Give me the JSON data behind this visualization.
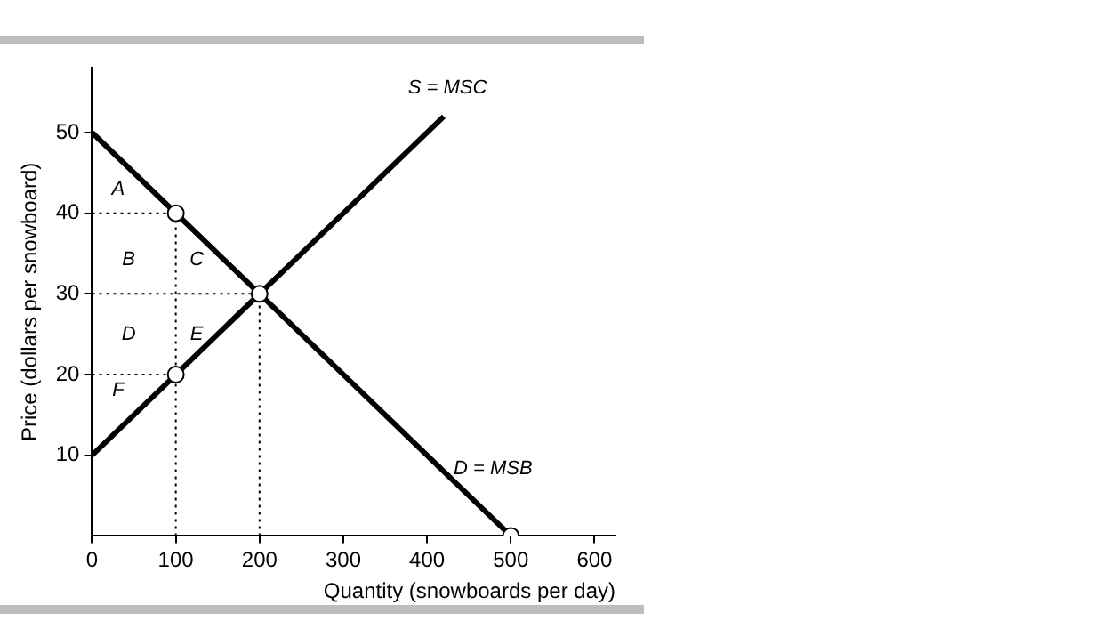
{
  "chart_data": {
    "type": "line",
    "xlabel": "Quantity (snowboards per day)",
    "ylabel": "Price (dollars per snowboard)",
    "xlim": [
      0,
      625
    ],
    "ylim": [
      0,
      58
    ],
    "xticks": [
      0,
      100,
      200,
      300,
      400,
      500,
      600
    ],
    "yticks": [
      10,
      20,
      30,
      40,
      50
    ],
    "grid": false,
    "legend": false,
    "marker": "none",
    "series": [
      {
        "name": "D = MSB",
        "color": "#000000",
        "x": [
          0,
          500
        ],
        "values": [
          50,
          0
        ]
      },
      {
        "name": "S = MSC",
        "color": "#000000",
        "x": [
          0,
          420
        ],
        "values": [
          10,
          52
        ]
      },
      {
        "type": "line",
        "color": "#000000",
        "line_style": "dotted",
        "x": [
          0,
          100
        ],
        "values": [
          40,
          40
        ]
      },
      {
        "type": "line",
        "color": "#000000",
        "line_style": "dotted",
        "x": [
          100,
          100
        ],
        "values": [
          0,
          40
        ]
      },
      {
        "type": "line",
        "color": "#000000",
        "line_style": "dotted",
        "x": [
          0,
          200
        ],
        "values": [
          30,
          30
        ]
      },
      {
        "type": "line",
        "color": "#000000",
        "line_style": "dotted",
        "x": [
          200,
          200
        ],
        "values": [
          0,
          30
        ]
      },
      {
        "type": "line",
        "color": "#000000",
        "line_style": "dotted",
        "x": [
          0,
          100
        ],
        "values": [
          20,
          20
        ]
      },
      {
        "type": "scatter",
        "color": "#000000",
        "marker": "circle",
        "x": [
          100,
          200,
          100,
          500
        ],
        "values": [
          40,
          30,
          20,
          0
        ]
      }
    ],
    "annotations": [
      "A",
      "B",
      "C",
      "D",
      "E",
      "F"
    ]
  }
}
